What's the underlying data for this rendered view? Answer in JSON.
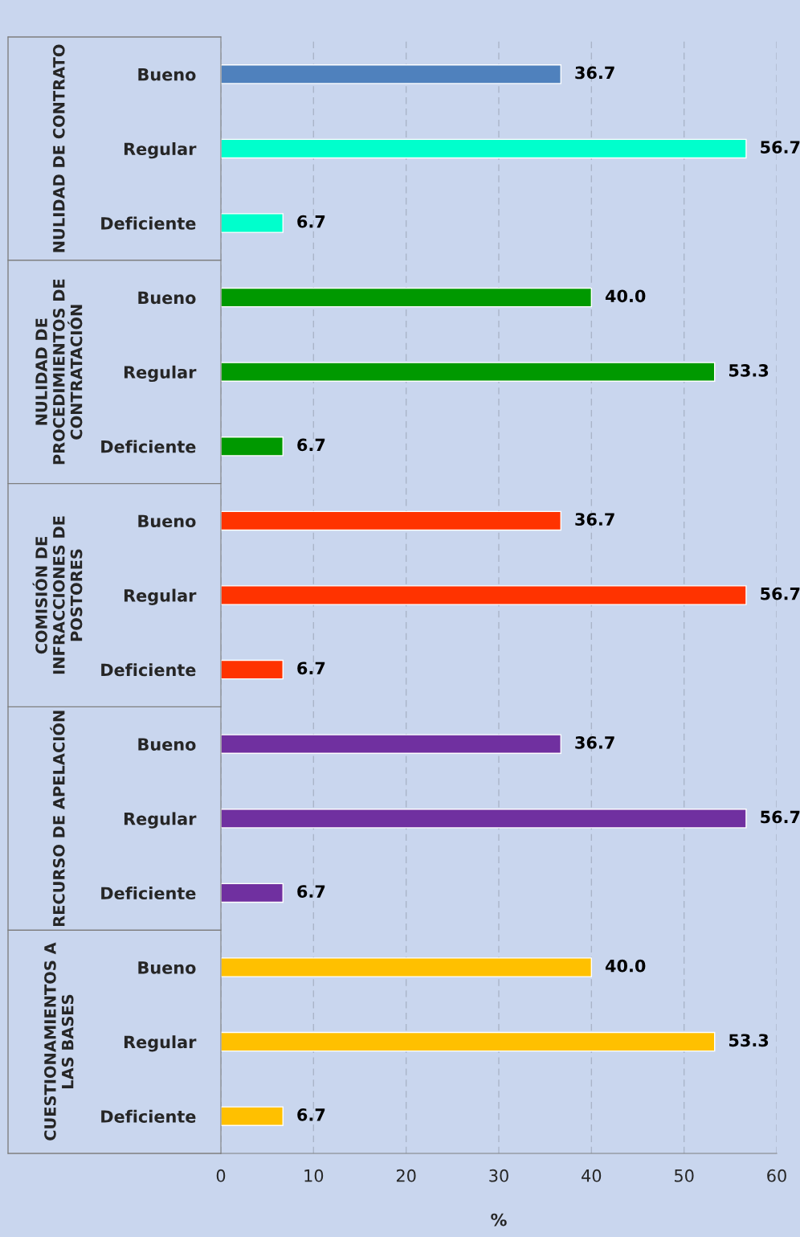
{
  "chart_data": {
    "type": "bar",
    "orientation": "horizontal",
    "categories": [
      "Bueno",
      "Regular",
      "Deficiente",
      "Bueno",
      "Regular",
      "Deficiente",
      "Bueno",
      "Regular",
      "Deficiente",
      "Bueno",
      "Regular",
      "Deficiente",
      "Bueno",
      "Regular",
      "Deficiente"
    ],
    "values": [
      36.7,
      56.7,
      6.7,
      40.0,
      53.3,
      6.7,
      36.7,
      56.7,
      6.7,
      36.7,
      56.7,
      6.7,
      40.0,
      53.3,
      6.7
    ],
    "value_labels": [
      "36.7",
      "56.7",
      "6.7",
      "40.0",
      "53.3",
      "6.7",
      "36.7",
      "56.7",
      "6.7",
      "36.7",
      "56.7",
      "6.7",
      "40.0",
      "53.3",
      "6.7"
    ],
    "colors": [
      "#4f81bd",
      "#00ffcc",
      "#00ffcc",
      "#009900",
      "#009900",
      "#009900",
      "#ff3300",
      "#ff3300",
      "#ff3300",
      "#7030a0",
      "#7030a0",
      "#7030a0",
      "#ffc000",
      "#ffc000",
      "#ffc000"
    ],
    "annotations": [
      "NULIDAD DE CONTRATO",
      "NULIDAD DE\nPROCEDIMIENTOS DE\nCONTRATACIÓN",
      "COMISIÓN DE\nINFRACCIONES DE\nPOSTORES",
      "RECURSO DE APELACIÓN",
      "CUESTIONAMIENTOS A\nLAS BASES"
    ],
    "xlabel": "%",
    "xlim": [
      0,
      60
    ],
    "xticks": [
      0,
      10,
      20,
      30,
      40,
      50,
      60
    ],
    "grid": "x",
    "legend": false
  }
}
